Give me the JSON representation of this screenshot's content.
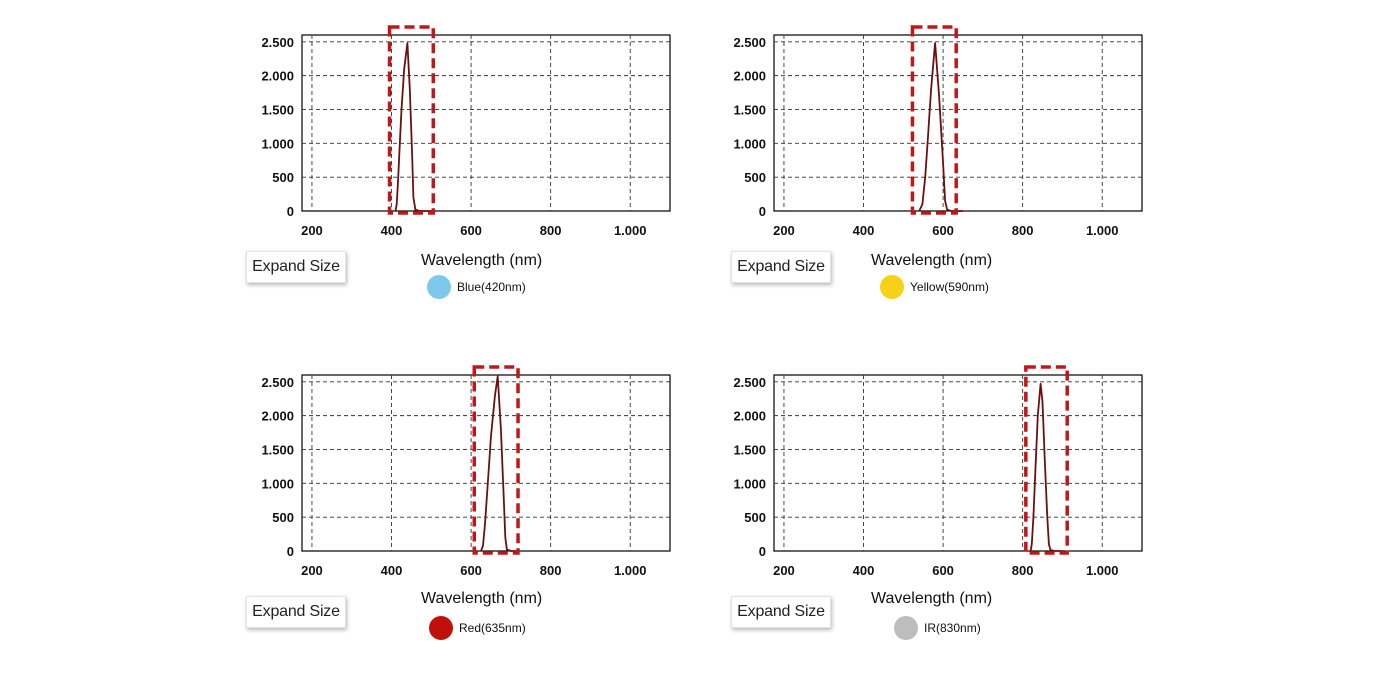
{
  "chart_data": [
    {
      "type": "line",
      "xlabel": "Wavelength (nm)",
      "xlim": [
        175,
        1100
      ],
      "ylim": [
        0,
        2600
      ],
      "xticks": [
        200,
        400,
        600,
        800,
        1000
      ],
      "xtick_labels": [
        "200",
        "400",
        "600",
        "800",
        "1.000"
      ],
      "yticks": [
        0,
        500,
        1000,
        1500,
        2000,
        2500
      ],
      "ytick_labels": [
        "0",
        "500",
        "1.000",
        "1.500",
        "2.000",
        "2.500"
      ],
      "grid": true,
      "series": [
        {
          "name": "Blue(420nm)",
          "color": "#7ec8ea",
          "x": [
            410,
            413,
            416,
            420,
            425,
            432,
            440,
            446,
            452,
            455,
            460,
            470,
            500
          ],
          "y": [
            0,
            100,
            400,
            900,
            1500,
            2100,
            2480,
            1800,
            800,
            200,
            20,
            0,
            0
          ]
        }
      ],
      "highlight_range": [
        395,
        505
      ],
      "expand_label": "Expand Size"
    },
    {
      "type": "line",
      "xlabel": "Wavelength (nm)",
      "xlim": [
        175,
        1100
      ],
      "ylim": [
        0,
        2600
      ],
      "xticks": [
        200,
        400,
        600,
        800,
        1000
      ],
      "xtick_labels": [
        "200",
        "400",
        "600",
        "800",
        "1.000"
      ],
      "yticks": [
        0,
        500,
        1000,
        1500,
        2000,
        2500
      ],
      "ytick_labels": [
        "0",
        "500",
        "1.000",
        "1.500",
        "2.000",
        "2.500"
      ],
      "grid": true,
      "series": [
        {
          "name": "Yellow(590nm)",
          "color": "#f7d117",
          "x": [
            540,
            548,
            555,
            562,
            570,
            580,
            590,
            600,
            605,
            610,
            620,
            650
          ],
          "y": [
            0,
            100,
            500,
            1100,
            1800,
            2480,
            1700,
            700,
            150,
            20,
            0,
            0
          ]
        }
      ],
      "highlight_range": [
        523,
        633
      ],
      "expand_label": "Expand Size"
    },
    {
      "type": "line",
      "xlabel": "Wavelength (nm)",
      "xlim": [
        175,
        1100
      ],
      "ylim": [
        0,
        2600
      ],
      "xticks": [
        200,
        400,
        600,
        800,
        1000
      ],
      "xtick_labels": [
        "200",
        "400",
        "600",
        "800",
        "1.000"
      ],
      "yticks": [
        0,
        500,
        1000,
        1500,
        2000,
        2500
      ],
      "ytick_labels": [
        "0",
        "500",
        "1.000",
        "1.500",
        "2.000",
        "2.500"
      ],
      "grid": true,
      "series": [
        {
          "name": "Red(635nm)",
          "color": "#c0100c",
          "x": [
            625,
            630,
            635,
            642,
            650,
            660,
            667,
            675,
            682,
            686,
            690,
            700,
            710
          ],
          "y": [
            0,
            80,
            400,
            1000,
            1700,
            2300,
            2580,
            1800,
            800,
            200,
            20,
            0,
            0
          ]
        }
      ],
      "highlight_range": [
        608,
        718
      ],
      "expand_label": "Expand Size"
    },
    {
      "type": "line",
      "xlabel": "Wavelength (nm)",
      "xlim": [
        175,
        1100
      ],
      "ylim": [
        0,
        2600
      ],
      "xticks": [
        200,
        400,
        600,
        800,
        1000
      ],
      "xtick_labels": [
        "200",
        "400",
        "600",
        "800",
        "1.000"
      ],
      "yticks": [
        0,
        500,
        1000,
        1500,
        2000,
        2500
      ],
      "ytick_labels": [
        "0",
        "500",
        "1.000",
        "1.500",
        "2.000",
        "2.500"
      ],
      "grid": true,
      "series": [
        {
          "name": "IR(830nm)",
          "color": "#bdbdbd",
          "x": [
            820,
            823,
            827,
            832,
            838,
            845,
            850,
            856,
            862,
            866,
            870,
            880,
            900
          ],
          "y": [
            0,
            100,
            500,
            1200,
            2000,
            2470,
            2200,
            1300,
            500,
            100,
            15,
            0,
            0
          ]
        }
      ],
      "highlight_range": [
        808,
        912
      ],
      "expand_label": "Expand Size"
    }
  ],
  "style": {
    "line_color": "#6b1010",
    "highlight_color": "#c01818",
    "grid_color": "#333333"
  }
}
